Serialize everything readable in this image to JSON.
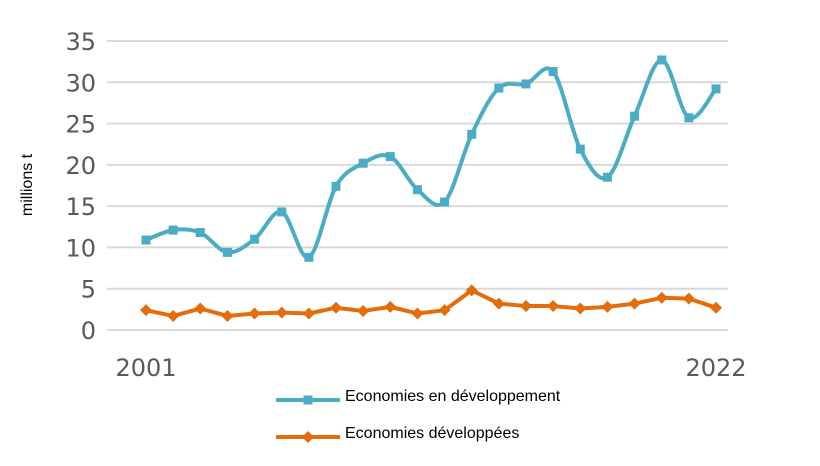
{
  "chart_data": {
    "type": "line",
    "title": "",
    "xlabel": "",
    "ylabel": "millions t",
    "ylim": [
      0,
      35
    ],
    "yticks": [
      "0",
      "5",
      "10",
      "15",
      "20",
      "25",
      "30",
      "35"
    ],
    "x": [
      2001,
      2002,
      2003,
      2004,
      2005,
      2006,
      2007,
      2008,
      2009,
      2010,
      2011,
      2012,
      2013,
      2014,
      2015,
      2016,
      2017,
      2018,
      2019,
      2020,
      2021,
      2022
    ],
    "xtick_labels": [
      "2001",
      "2022"
    ],
    "grid": true,
    "legend_position": "bottom",
    "series": [
      {
        "name": "Economies en développement",
        "color": "#4BACC6",
        "marker": "square",
        "smooth": true,
        "values": [
          10.9,
          12.1,
          11.8,
          9.4,
          11.0,
          14.3,
          8.8,
          17.4,
          20.2,
          21.0,
          17.0,
          15.5,
          23.7,
          29.3,
          29.8,
          31.3,
          21.9,
          18.5,
          25.9,
          32.7,
          25.7,
          29.2
        ]
      },
      {
        "name": "Economies développées",
        "color": "#E46C0A",
        "marker": "diamond",
        "smooth": false,
        "values": [
          2.4,
          1.7,
          2.6,
          1.7,
          2.0,
          2.1,
          2.0,
          2.7,
          2.3,
          2.8,
          2.0,
          2.4,
          4.8,
          3.2,
          2.9,
          2.9,
          2.6,
          2.8,
          3.2,
          3.9,
          3.8,
          2.7
        ]
      }
    ]
  }
}
